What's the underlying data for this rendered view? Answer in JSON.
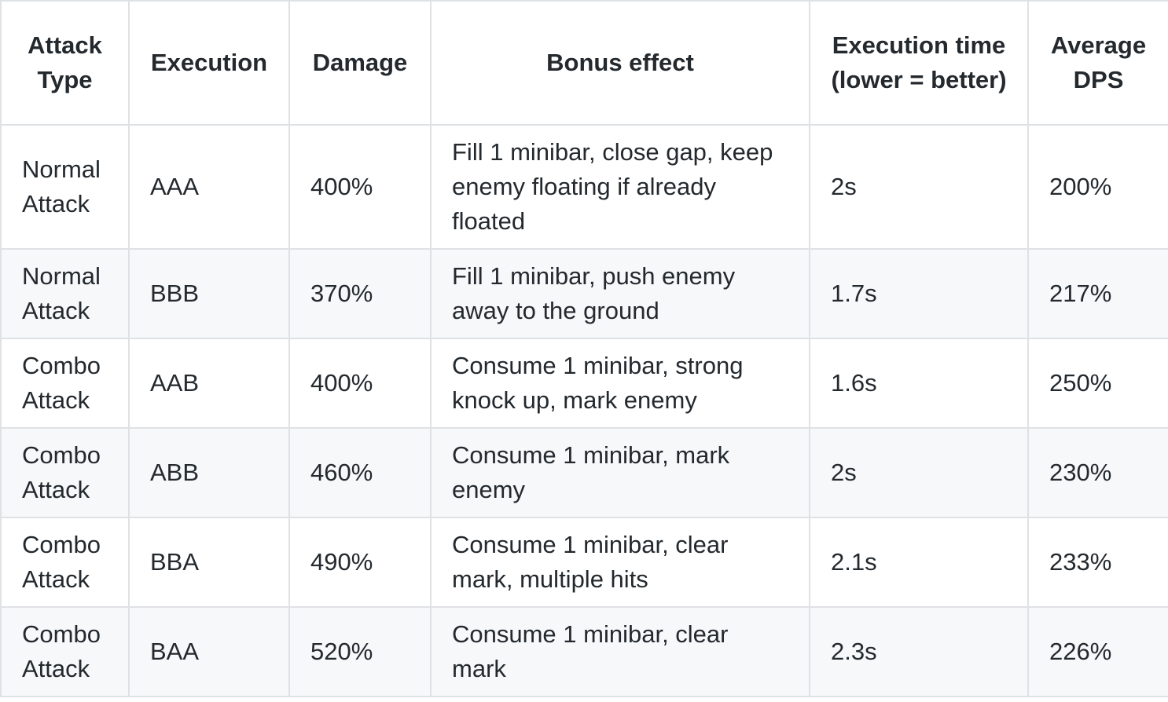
{
  "table": {
    "headers": [
      "Attack Type",
      "Execution",
      "Damage",
      "Bonus effect",
      "Execution time (lower = better)",
      "Average DPS"
    ],
    "rows": [
      [
        "Normal Attack",
        "AAA",
        "400%",
        "Fill 1 minibar, close gap, keep enemy floating if already floated",
        "2s",
        "200%"
      ],
      [
        "Normal Attack",
        "BBB",
        "370%",
        "Fill 1 minibar, push enemy away to the ground",
        "1.7s",
        "217%"
      ],
      [
        "Combo Attack",
        "AAB",
        "400%",
        "Consume 1 minibar, strong knock up, mark enemy",
        "1.6s",
        "250%"
      ],
      [
        "Combo Attack",
        "ABB",
        "460%",
        "Consume 1 minibar, mark enemy",
        "2s",
        "230%"
      ],
      [
        "Combo Attack",
        "BBA",
        "490%",
        "Consume 1 minibar, clear mark, multiple hits",
        "2.1s",
        "233%"
      ],
      [
        "Combo Attack",
        "BAA",
        "520%",
        "Consume 1 minibar, clear mark",
        "2.3s",
        "226%"
      ]
    ]
  },
  "colors": {
    "border": "#dfe2e5",
    "stripe": "#f6f8fa",
    "text": "#24292e"
  }
}
